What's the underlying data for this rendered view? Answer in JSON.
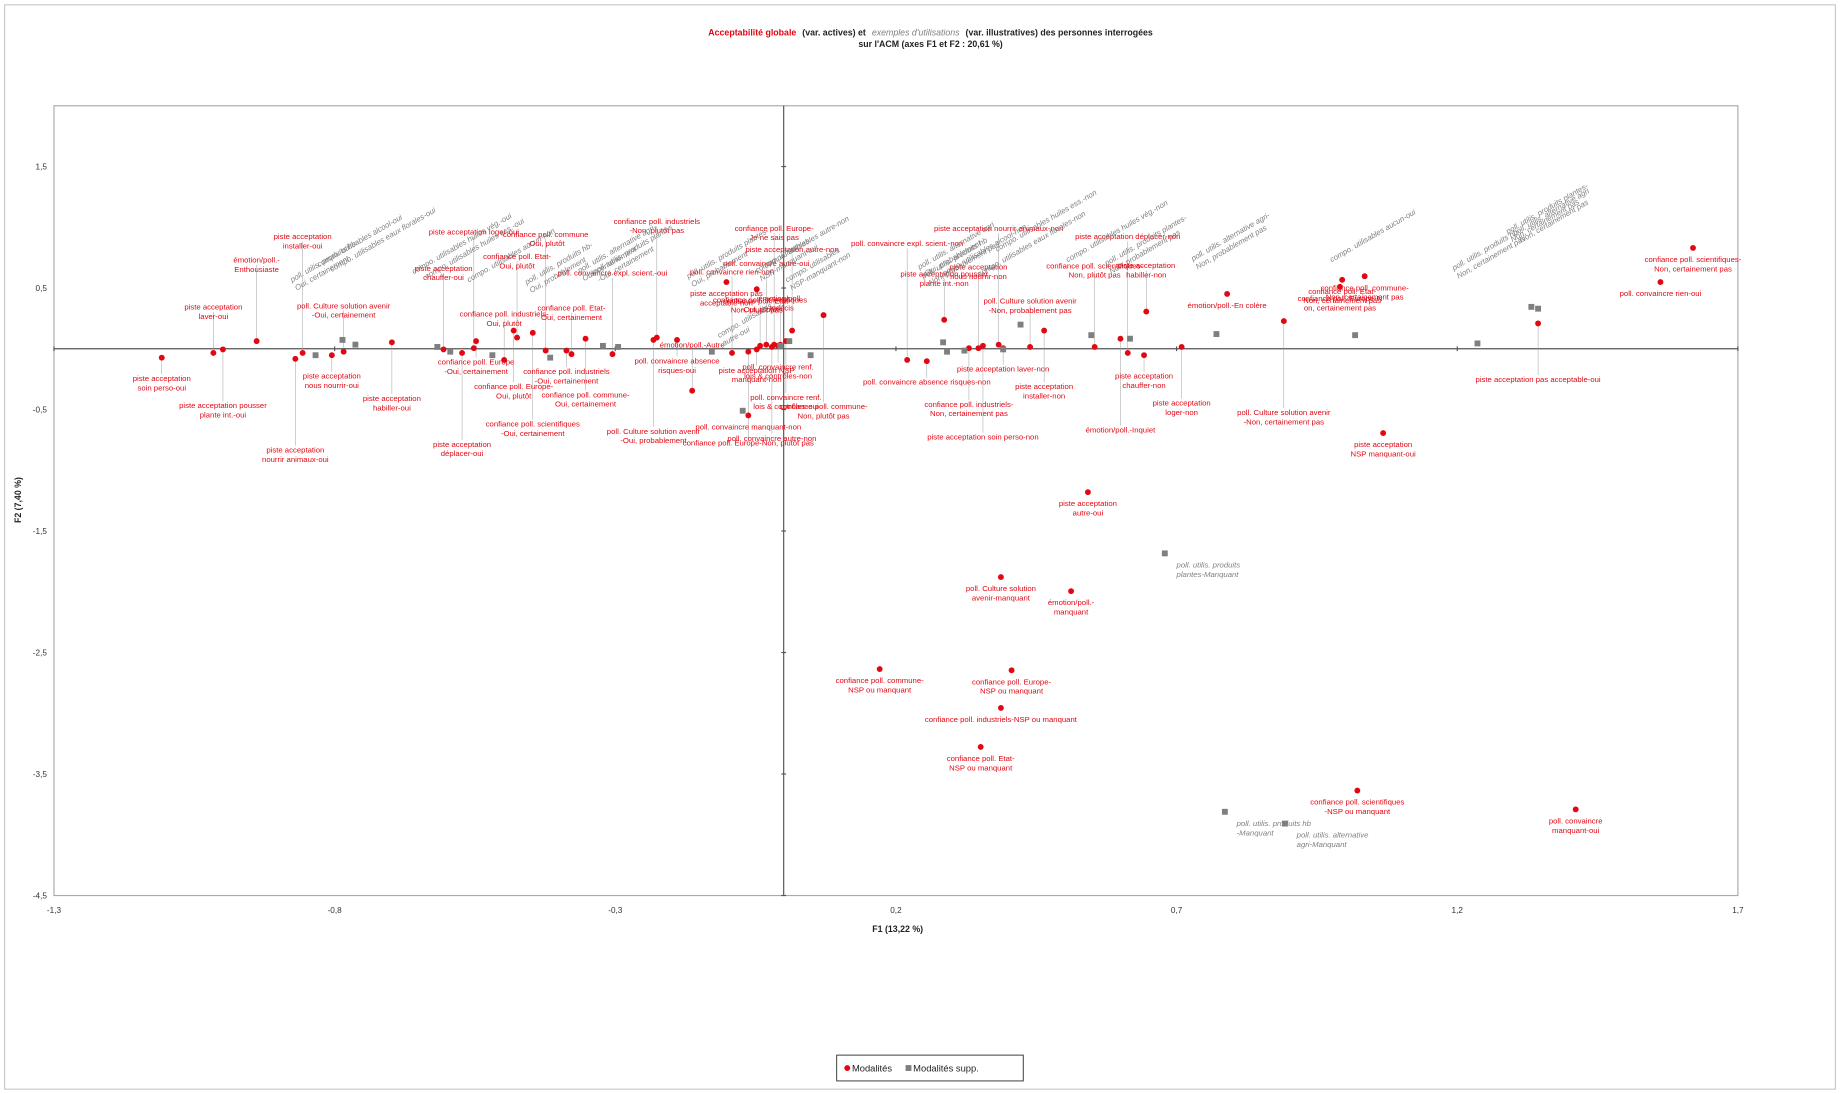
{
  "chart_data": {
    "type": "scatter",
    "title": [
      "Acceptabilité globale",
      "(var. actives) et",
      "exemples d'utilisations",
      "(var. illustratives) des personnes interrogées"
    ],
    "subtitle": "sur l'ACM (axes F1 et F2 : 20,61 %)",
    "x_label": "F1 (13,22 %)",
    "y_label": "F2 (7,40 %)",
    "xlim": [
      -1.3,
      1.7
    ],
    "ylim": [
      -4.5,
      2
    ],
    "xticks": [
      {
        "value": -1.3,
        "label": "-1,3"
      },
      {
        "value": -0.8,
        "label": "-0,8"
      },
      {
        "value": -0.3,
        "label": "-0,3"
      },
      {
        "value": 0.2,
        "label": "0,2"
      },
      {
        "value": 0.7,
        "label": "0,7"
      },
      {
        "value": 1.2,
        "label": "1,2"
      },
      {
        "value": 1.7,
        "label": "1,7"
      }
    ],
    "yticks": [
      {
        "value": 1.5,
        "label": "1,5"
      },
      {
        "value": 0.5,
        "label": "0,5"
      },
      {
        "value": -0.5,
        "label": "-0,5"
      },
      {
        "value": -1.5,
        "label": "-1,5"
      },
      {
        "value": -2.5,
        "label": "-2,5"
      },
      {
        "value": -3.5,
        "label": "-3,5"
      },
      {
        "value": -4.5,
        "label": "-4,5"
      }
    ],
    "legend": "bottom",
    "series": [
      {
        "name": "Modalités",
        "color": "#e30613",
        "marker": "circle",
        "x": [
          -1.108,
          -1.016,
          -0.999,
          -0.939,
          -0.87,
          -0.857,
          -0.805,
          -0.784,
          -0.698,
          -0.606,
          -0.573,
          -0.552,
          -0.548,
          -0.498,
          -0.481,
          -0.475,
          -0.447,
          -0.424,
          -0.387,
          -0.378,
          -0.353,
          -0.305,
          -0.232,
          -0.226,
          -0.19,
          -0.163,
          -0.102,
          -0.092,
          -0.063,
          -0.063,
          -0.048,
          -0.042,
          -0.048,
          -0.031,
          -0.021,
          -0.017,
          -0.01,
          -0.006,
          0.004,
          0.015,
          0.071,
          0.22,
          0.255,
          0.286,
          0.33,
          0.347,
          0.355,
          0.383,
          0.391,
          0.439,
          0.464,
          0.554,
          0.6,
          0.613,
          0.642,
          0.646,
          0.709,
          0.79,
          0.891,
          0.991,
          0.995,
          1.035,
          1.344,
          1.562,
          1.62,
          1.068,
          0.542,
          0.387,
          0.512,
          0.171,
          0.406,
          0.387,
          0.351,
          1.022,
          1.411
        ],
        "values": [
          -0.073,
          -0.034,
          -0.005,
          0.063,
          -0.083,
          -0.034,
          -0.053,
          -0.024,
          0.053,
          -0.005,
          -0.034,
          0.005,
          0.063,
          -0.092,
          0.15,
          0.092,
          0.131,
          -0.015,
          -0.015,
          -0.044,
          0.083,
          -0.044,
          0.073,
          0.092,
          0.073,
          -0.345,
          0.549,
          -0.034,
          -0.024,
          -0.549,
          -0.005,
          0.024,
          0.49,
          0.034,
          0.015,
          0.034,
          0.024,
          0.034,
          0.063,
          0.15,
          0.277,
          -0.092,
          -0.102,
          0.238,
          0.005,
          0.005,
          0.024,
          0.034,
          0.005,
          0.015,
          0.15,
          0.015,
          0.083,
          -0.034,
          -0.053,
          0.306,
          0.015,
          0.451,
          0.228,
          0.51,
          0.568,
          0.597,
          0.209,
          0.549,
          0.83,
          -0.694,
          -1.18,
          -1.879,
          -1.995,
          -2.636,
          -2.646,
          -2.956,
          -3.277,
          -3.636,
          -3.791
        ],
        "labels": [
          [
            "piste acceptation",
            "soin perso-oui"
          ],
          [
            "piste acceptation",
            "laver-oui"
          ],
          [
            "piste acceptation pousser",
            "plante int.-oui"
          ],
          [
            "émotion/poll.-",
            "Enthousiaste"
          ],
          [
            "piste acceptation",
            "nourrir animaux-oui"
          ],
          [
            "piste acceptation",
            "installer-oui"
          ],
          [
            "piste acceptation",
            "nous nourrir-oui"
          ],
          [
            "poll. Culture solution avenir",
            "-Oui, certainement"
          ],
          [
            "piste acceptation",
            "habiller-oui"
          ],
          [
            "piste acceptation",
            "chauffer-oui"
          ],
          [
            "piste acceptation",
            "déplacer-oui"
          ],
          [
            "piste acceptation loger-oui"
          ],
          [
            "confiance poll. Europe",
            "-Oui, certainement"
          ],
          [
            "confiance poll. industriels-",
            "Oui, plutôt"
          ],
          [
            "confiance poll. Europe-",
            "Oui, plutôt"
          ],
          [
            "confiance poll. Etat-",
            "Oui, plutôt"
          ],
          [
            "confiance poll. scientifiques",
            "-Oui, certainement"
          ],
          [
            "confiance poll. commune",
            "-Oui, plutôt"
          ],
          [
            "confiance poll. industriels",
            "-Oui, certainement"
          ],
          [
            "confiance poll. Etat-",
            "Oui, certainement"
          ],
          [
            "confiance poll. commune-",
            "Oui, certainement"
          ],
          [
            "poll. convaincre expl. scient.-oui"
          ],
          [
            "poll. Culture solution avenir",
            "-Oui, probablement"
          ],
          [
            "confiance poll. industriels",
            "-Non, plutôt pas"
          ],
          [
            "poll. convaincre absence",
            "risques-oui"
          ],
          [
            "émotion/poll.-Autre"
          ],
          [
            "piste acceptation pas",
            "acceptable-non"
          ],
          [
            "poll. convaincre rien-non"
          ],
          [
            "confiance poll. Europe-Non, plutôt pas"
          ],
          [
            "poll. convaincre manquant-non"
          ],
          [
            "piste acceptation NSP",
            "manquant-non"
          ],
          [
            "confiance poll. scientifiques",
            "-Oui, plutôt"
          ],
          [
            "confiance poll. Etat-",
            "Non, plutôt pas"
          ],
          [
            "poll. convaincre autre-oui"
          ],
          [
            "poll. convaincre autre-non"
          ],
          [
            "confiance poll. Europe-",
            "Je ne sais pas"
          ],
          [
            "poll. convaincre renf.",
            "lois & contrôles-non"
          ],
          [
            "émotion/poll.",
            "-Indécis"
          ],
          [
            "poll. convaincre renf.",
            "lois & contrôles-oui"
          ],
          [
            "piste acceptation autre-non"
          ],
          [
            "confiance poll. commune-",
            "Non, plutôt pas"
          ],
          [
            "poll. convaincre expl. scient.-non"
          ],
          [
            "poll. convaincre absence risques-non"
          ],
          [
            "piste acceptation pousser",
            "plante int.-non"
          ],
          [
            "confiance poll. industriels-",
            "Non, certainement pas"
          ],
          [
            "piste acceptation",
            "nous nourrir-non"
          ],
          [
            "piste acceptation soin perso-non"
          ],
          [
            "piste acceptation nourrir animaux-non"
          ],
          [
            "piste acceptation laver-non"
          ],
          [
            "poll. Culture solution avenir",
            "-Non, probablement pas"
          ],
          [
            "piste acceptation",
            "installer-non"
          ],
          [
            "confiance poll. scientifiques-",
            "Non, plutôt pas"
          ],
          [
            "émotion/poll.-Inquiet"
          ],
          [
            "piste acceptation déplacer-non"
          ],
          [
            "piste acceptation",
            "chauffer-non"
          ],
          [
            "piste acceptation",
            "habiller-non"
          ],
          [
            "piste acceptation",
            "loger-non"
          ],
          [
            "émotion/poll.-En colère"
          ],
          [
            "poll. Culture solution avenir",
            "-Non, certainement pas"
          ],
          [
            "confiance poll. Europe-N",
            "on, certainement pas"
          ],
          [
            "confiance poll. Etat-",
            "Non, certainement pas"
          ],
          [
            "confiance poll. commune-",
            "Non, certainement pas"
          ],
          [
            "piste acceptation pas acceptable-oui"
          ],
          [
            "poll. convaincre rien-oui"
          ],
          [
            "confiance poll. scientifiques-",
            "Non, certainement pas"
          ],
          [
            "piste acceptation",
            "NSP manquant-oui"
          ],
          [
            "piste acceptation",
            "autre-oui"
          ],
          [
            "poll. Culture solution",
            "avenir-manquant"
          ],
          [
            "émotion/poll.-",
            "manquant"
          ],
          [
            "confiance poll. commune-",
            "NSP ou manquant"
          ],
          [
            "confiance poll. Europe-",
            "NSP ou manquant"
          ],
          [
            "confiance poll. industriels-NSP ou manquant"
          ],
          [
            "confiance poll. Etat-",
            "NSP ou manquant"
          ],
          [
            "confiance poll. scientifiques",
            "-NSP ou manquant"
          ],
          [
            "poll. convaincre",
            "manquant-oui"
          ]
        ]
      },
      {
        "name": "Modalités supp.",
        "color": "#7f7f7f",
        "marker": "square",
        "x": [
          -0.834,
          -0.786,
          -0.763,
          -0.617,
          -0.594,
          -0.519,
          -0.416,
          -0.322,
          -0.295,
          -0.128,
          -0.073,
          -0.006,
          0.01,
          0.048,
          0.284,
          0.291,
          0.322,
          0.391,
          0.422,
          0.548,
          0.617,
          0.771,
          1.018,
          1.236,
          1.332,
          0.679,
          0.786,
          0.893,
          1.344
        ],
        "values": [
          -0.053,
          0.073,
          0.034,
          0.015,
          -0.024,
          -0.053,
          -0.073,
          0.024,
          0.015,
          -0.024,
          -0.51,
          0.024,
          0.063,
          -0.053,
          0.053,
          -0.024,
          -0.015,
          -0.005,
          0.199,
          0.112,
          0.083,
          0.121,
          0.112,
          0.044,
          0.345,
          -1.684,
          -3.811,
          -3.908,
          0.33
        ],
        "labels": [
          [
            "poll. utilis. produits hb-",
            "Oui, certainement"
          ],
          [
            "compo. utilisables alcool-oui"
          ],
          [
            "compo. utilisables eaux florales-oui"
          ],
          [
            "compo. utilisables huiles vég.-oui"
          ],
          [
            "compo. utilisables huiles ess.-oui"
          ],
          [
            "compo. utilisables aucun-non"
          ],
          [
            "poll. utilis. produits hb-",
            "Oui, probablement"
          ],
          [
            "poll. utilis. alternative agri-",
            "Oui, certainement"
          ],
          [
            "poll. utilis. produits plantes",
            "-Oui, certainement"
          ],
          [
            "poll. utilis. produits plantes-",
            "Oui, probablement"
          ],
          [
            "compo. utilisables",
            "autre-oui"
          ],
          [
            "compo. utilisables",
            "NSP-manquant-oui"
          ],
          [
            "compo. utilisables autre-non"
          ],
          [
            "compo. utilisables",
            "NSP-manquant-non"
          ],
          [
            "poll. utilis. alternative agri",
            "-Oui, probablement"
          ],
          [
            "poll. utilis. produits hb",
            "-Non, probablement pas"
          ],
          [
            "compo. utilisables alcool-non"
          ],
          [
            "compo. utilisables eaux florales-non"
          ],
          [
            "compo. utilisables huiles ess.-non"
          ],
          [
            "compo. utilisables huiles vég.-non"
          ],
          [
            "poll. utilis. produits plantes-",
            "Non, probablement pas"
          ],
          [
            "poll. utilis. alternative agri-",
            "Non, probablement pas"
          ],
          [
            "compo. utilisables aucun-oui"
          ],
          [
            "poll. utilis. produits hb-",
            "Non, certainement pas"
          ],
          [
            "poll. utilis. produits plantes-",
            "Non, certainement pas"
          ],
          [
            "poll. utilis. produits",
            "plantes-Manquant"
          ],
          [
            "poll. utilis. produits hb",
            "-Manquant"
          ],
          [
            "poll. utilis. alternative",
            "agri-Manquant"
          ],
          [
            "poll. utilis. alternative agri",
            "-Non, certainement pas"
          ]
        ]
      }
    ]
  }
}
